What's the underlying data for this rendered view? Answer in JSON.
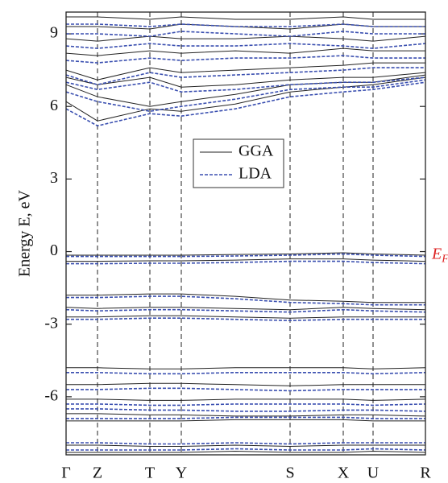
{
  "chart_data": {
    "type": "band",
    "ylabel": "Energy E, eV",
    "fermi_label": {
      "main": "E",
      "sub": "F"
    },
    "x": [
      0,
      39,
      104,
      143,
      210,
      278,
      344,
      381,
      446
    ],
    "xlim": [
      0,
      446
    ],
    "xticks": [
      {
        "value": 0,
        "label": "Γ"
      },
      {
        "value": 39,
        "label": "Z"
      },
      {
        "value": 104,
        "label": "T"
      },
      {
        "value": 143,
        "label": "Y"
      },
      {
        "value": 278,
        "label": "S"
      },
      {
        "value": 344,
        "label": "X"
      },
      {
        "value": 381,
        "label": "U"
      },
      {
        "value": 446,
        "label": "R"
      }
    ],
    "ylim": [
      -8.4,
      9.9
    ],
    "yticks": [
      -6,
      -3,
      0,
      3,
      6,
      9
    ],
    "legend": "upper-center",
    "series": [
      {
        "name": "GGA",
        "color": "#222222",
        "dashed": false,
        "bands": [
          [
            6.2,
            5.4,
            5.9,
            5.8,
            6.1,
            6.6,
            6.8,
            6.9,
            7.2
          ],
          [
            6.9,
            6.4,
            6.0,
            6.2,
            6.5,
            6.9,
            7.0,
            7.0,
            7.3
          ],
          [
            7.2,
            6.9,
            7.2,
            6.8,
            6.9,
            7.1,
            7.2,
            7.2,
            7.4
          ],
          [
            7.5,
            7.1,
            7.6,
            7.4,
            7.5,
            7.6,
            7.7,
            7.8,
            7.8
          ],
          [
            8.2,
            8.1,
            8.3,
            8.2,
            8.3,
            8.2,
            8.4,
            8.3,
            8.3
          ],
          [
            8.8,
            8.7,
            8.9,
            8.8,
            8.8,
            8.9,
            8.8,
            8.7,
            8.9
          ],
          [
            9.3,
            9.3,
            9.2,
            9.4,
            9.3,
            9.2,
            9.4,
            9.3,
            9.3
          ],
          [
            9.7,
            9.7,
            9.6,
            9.7,
            9.6,
            9.6,
            9.7,
            9.6,
            9.6
          ],
          [
            -0.15,
            -0.15,
            -0.15,
            -0.15,
            -0.12,
            -0.1,
            -0.05,
            -0.1,
            -0.15
          ],
          [
            -0.4,
            -0.4,
            -0.38,
            -0.38,
            -0.35,
            -0.3,
            -0.3,
            -0.35,
            -0.4
          ],
          [
            -1.8,
            -1.8,
            -1.75,
            -1.75,
            -1.85,
            -2.0,
            -2.05,
            -2.1,
            -2.1
          ],
          [
            -2.3,
            -2.35,
            -2.3,
            -2.3,
            -2.35,
            -2.4,
            -2.3,
            -2.35,
            -2.4
          ],
          [
            -2.7,
            -2.7,
            -2.65,
            -2.65,
            -2.7,
            -2.75,
            -2.7,
            -2.7,
            -2.7
          ],
          [
            -4.8,
            -4.8,
            -4.85,
            -4.85,
            -4.8,
            -4.8,
            -4.8,
            -4.85,
            -4.8
          ],
          [
            -5.5,
            -5.5,
            -5.45,
            -5.45,
            -5.5,
            -5.55,
            -5.5,
            -5.5,
            -5.5
          ],
          [
            -6.1,
            -6.1,
            -6.15,
            -6.15,
            -6.1,
            -6.1,
            -6.1,
            -6.15,
            -6.1
          ],
          [
            -6.7,
            -6.7,
            -6.75,
            -6.75,
            -6.8,
            -6.8,
            -6.75,
            -6.75,
            -6.8
          ],
          [
            -7.0,
            -7.0,
            -7.0,
            -7.0,
            -6.95,
            -6.95,
            -6.95,
            -7.0,
            -7.0
          ],
          [
            -8.0,
            -8.0,
            -8.05,
            -8.05,
            -8.0,
            -8.05,
            -8.0,
            -8.0,
            -8.0
          ],
          [
            -8.3,
            -8.3,
            -8.3,
            -8.3,
            -8.25,
            -8.3,
            -8.3,
            -8.25,
            -8.3
          ]
        ]
      },
      {
        "name": "LDA",
        "color": "#3a4fb0",
        "dashed": true,
        "bands": [
          [
            5.9,
            5.2,
            5.7,
            5.6,
            5.9,
            6.4,
            6.6,
            6.7,
            7.0
          ],
          [
            6.6,
            6.2,
            5.8,
            6.0,
            6.3,
            6.7,
            6.8,
            6.8,
            7.1
          ],
          [
            7.0,
            6.7,
            7.0,
            6.6,
            6.7,
            6.9,
            7.0,
            7.0,
            7.2
          ],
          [
            7.3,
            6.9,
            7.4,
            7.2,
            7.3,
            7.4,
            7.5,
            7.6,
            7.6
          ],
          [
            7.9,
            7.8,
            8.0,
            7.9,
            8.0,
            8.0,
            8.1,
            8.0,
            8.0
          ],
          [
            8.5,
            8.4,
            8.6,
            8.5,
            8.5,
            8.6,
            8.5,
            8.4,
            8.6
          ],
          [
            9.0,
            9.0,
            8.9,
            9.1,
            9.0,
            8.9,
            9.1,
            9.0,
            9.0
          ],
          [
            9.4,
            9.4,
            9.3,
            9.4,
            9.3,
            9.3,
            9.4,
            9.3,
            9.3
          ],
          [
            -0.2,
            -0.2,
            -0.2,
            -0.2,
            -0.18,
            -0.15,
            -0.1,
            -0.15,
            -0.2
          ],
          [
            -0.5,
            -0.5,
            -0.48,
            -0.48,
            -0.45,
            -0.4,
            -0.4,
            -0.45,
            -0.5
          ],
          [
            -1.9,
            -1.9,
            -1.85,
            -1.85,
            -1.95,
            -2.1,
            -2.15,
            -2.2,
            -2.2
          ],
          [
            -2.4,
            -2.45,
            -2.4,
            -2.4,
            -2.45,
            -2.5,
            -2.4,
            -2.45,
            -2.5
          ],
          [
            -2.8,
            -2.8,
            -2.75,
            -2.75,
            -2.8,
            -2.85,
            -2.8,
            -2.8,
            -2.8
          ],
          [
            -5.0,
            -5.0,
            -5.05,
            -5.05,
            -5.0,
            -5.0,
            -5.0,
            -5.05,
            -5.0
          ],
          [
            -5.7,
            -5.7,
            -5.65,
            -5.65,
            -5.7,
            -5.75,
            -5.7,
            -5.7,
            -5.7
          ],
          [
            -6.3,
            -6.3,
            -6.35,
            -6.35,
            -6.3,
            -6.3,
            -6.3,
            -6.35,
            -6.3
          ],
          [
            -6.5,
            -6.5,
            -6.55,
            -6.55,
            -6.6,
            -6.6,
            -6.55,
            -6.55,
            -6.6
          ],
          [
            -6.9,
            -6.9,
            -6.9,
            -6.9,
            -6.85,
            -6.85,
            -6.85,
            -6.9,
            -6.9
          ],
          [
            -7.9,
            -7.9,
            -7.95,
            -7.95,
            -7.9,
            -7.95,
            -7.9,
            -7.9,
            -7.9
          ],
          [
            -8.2,
            -8.2,
            -8.2,
            -8.2,
            -8.15,
            -8.2,
            -8.2,
            -8.15,
            -8.2
          ]
        ]
      }
    ]
  }
}
